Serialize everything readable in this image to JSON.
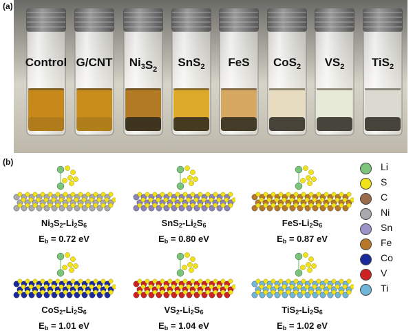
{
  "panel_a": {
    "label": "(a)",
    "vials": [
      {
        "name": "Control",
        "sub": "",
        "liquid": "#c78a1a"
      },
      {
        "name": "G/CNT",
        "sub": "",
        "liquid": "#c98d1c"
      },
      {
        "name": "Ni",
        "sub": "3",
        "name2": "S",
        "sub2": "2",
        "liquid": "#b27a22"
      },
      {
        "name": "SnS",
        "sub": "2",
        "liquid": "#dca92a"
      },
      {
        "name": "FeS",
        "sub": "",
        "liquid": "#d6a862"
      },
      {
        "name": "CoS",
        "sub": "2",
        "liquid": "#e8dcc0"
      },
      {
        "name": "VS",
        "sub": "2",
        "liquid": "#e8ead8"
      },
      {
        "name": "TiS",
        "sub": "2",
        "liquid": "#dadad0"
      }
    ]
  },
  "panel_b": {
    "label": "(b)",
    "structures": [
      {
        "formula_a": "Ni",
        "a_sub": "3",
        "formula_b": "S",
        "b_sub": "2",
        "suffix": "-Li",
        "li_sub": "2",
        "s": "S",
        "s_sub": "6",
        "eb_label": "E",
        "eb_sub": "b",
        "eb_value": "= 0.72 eV",
        "metal": "#a9a9b0"
      },
      {
        "formula_a": "SnS",
        "a_sub": "2",
        "formula_b": "",
        "b_sub": "",
        "suffix": "-Li",
        "li_sub": "2",
        "s": "S",
        "s_sub": "6",
        "eb_label": "E",
        "eb_sub": "b",
        "eb_value": "= 0.80 eV",
        "metal": "#8c84b8"
      },
      {
        "formula_a": "FeS",
        "a_sub": "",
        "formula_b": "",
        "b_sub": "",
        "suffix": "-Li",
        "li_sub": "2",
        "s": "S",
        "s_sub": "6",
        "eb_label": "E",
        "eb_sub": "b",
        "eb_value": "= 0.87 eV",
        "metal": "#b8782a"
      },
      {
        "formula_a": "CoS",
        "a_sub": "2",
        "formula_b": "",
        "b_sub": "",
        "suffix": "-Li",
        "li_sub": "2",
        "s": "S",
        "s_sub": "6",
        "eb_label": "E",
        "eb_sub": "b",
        "eb_value": "= 1.01 eV",
        "metal": "#1a2a9c"
      },
      {
        "formula_a": "VS",
        "a_sub": "2",
        "formula_b": "",
        "b_sub": "",
        "suffix": "-Li",
        "li_sub": "2",
        "s": "S",
        "s_sub": "6",
        "eb_label": "E",
        "eb_sub": "b",
        "eb_value": "= 1.04 eV",
        "metal": "#cc2222"
      },
      {
        "formula_a": "TiS",
        "a_sub": "2",
        "formula_b": "",
        "b_sub": "",
        "suffix": "-Li",
        "li_sub": "2",
        "s": "S",
        "s_sub": "6",
        "eb_label": "E",
        "eb_sub": "b",
        "eb_value": "= 1.02 eV",
        "metal": "#6fb6d8"
      }
    ],
    "legend": [
      {
        "element": "Li",
        "color": "#7cc47c"
      },
      {
        "element": "S",
        "color": "#f2e21a"
      },
      {
        "element": "C",
        "color": "#9a6a4a"
      },
      {
        "element": "Ni",
        "color": "#a9a9b0"
      },
      {
        "element": "Sn",
        "color": "#9a94c8"
      },
      {
        "element": "Fe",
        "color": "#b8782a"
      },
      {
        "element": "Co",
        "color": "#1a2a9c"
      },
      {
        "element": "V",
        "color": "#cc2222"
      },
      {
        "element": "Ti",
        "color": "#6fb6d8"
      }
    ]
  }
}
